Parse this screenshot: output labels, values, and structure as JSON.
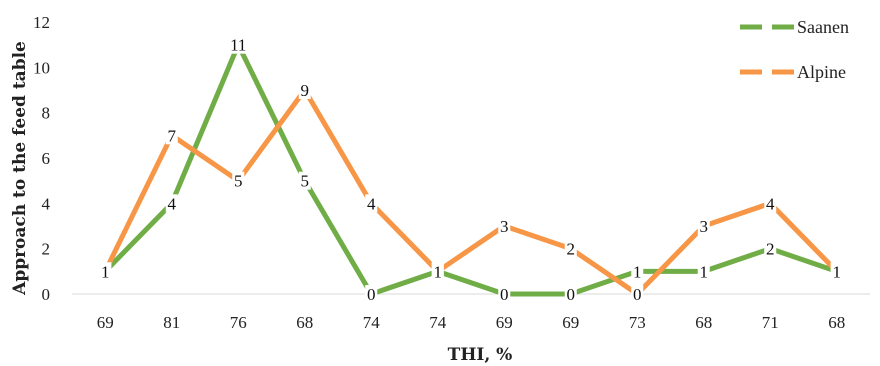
{
  "chart_data": {
    "type": "line",
    "title": "",
    "xlabel": "THI, %",
    "ylabel": "Approach to the feed table",
    "categories": [
      "69",
      "81",
      "76",
      "68",
      "74",
      "74",
      "69",
      "69",
      "73",
      "68",
      "71",
      "68"
    ],
    "ylim": [
      0,
      12
    ],
    "yticks": [
      "0",
      "2",
      "4",
      "6",
      "8",
      "10",
      "12"
    ],
    "grid": false,
    "legend": "top-right",
    "series": [
      {
        "name": "Saanen",
        "color": "#70ad47",
        "values": [
          1,
          4,
          11,
          5,
          0,
          1,
          0,
          0,
          1,
          1,
          2,
          1
        ]
      },
      {
        "name": "Alpine",
        "color": "#f79646",
        "values": [
          1,
          7,
          5,
          9,
          4,
          1,
          3,
          2,
          0,
          3,
          4,
          1
        ]
      }
    ]
  }
}
